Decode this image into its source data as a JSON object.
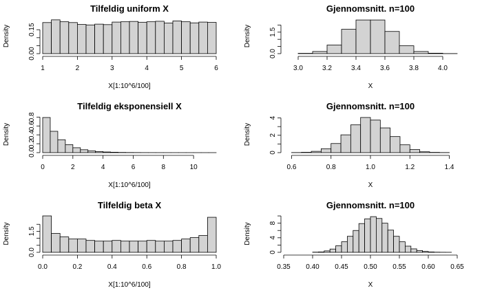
{
  "chart_data": [
    {
      "type": "bar",
      "title": "Tilfeldig uniform X",
      "xlabel": "X[1:10^6/100]",
      "ylabel": "Density",
      "bin_edges": [
        1.0,
        1.25,
        1.5,
        1.75,
        2.0,
        2.25,
        2.5,
        2.75,
        3.0,
        3.25,
        3.5,
        3.75,
        4.0,
        4.25,
        4.5,
        4.75,
        5.0,
        5.25,
        5.5,
        5.75,
        6.0
      ],
      "values": [
        0.195,
        0.212,
        0.2,
        0.195,
        0.183,
        0.18,
        0.185,
        0.182,
        0.198,
        0.2,
        0.202,
        0.197,
        0.2,
        0.203,
        0.192,
        0.205,
        0.2,
        0.193,
        0.198,
        0.196
      ],
      "xticks": [
        1,
        2,
        3,
        4,
        5,
        6
      ],
      "yticks": [
        0.0,
        0.05,
        0.1,
        0.15
      ],
      "yticklabels": [
        "0.00",
        "",
        "",
        "0.15"
      ],
      "xlim": [
        1.0,
        6.0
      ],
      "ylim": [
        0.0,
        0.22
      ]
    },
    {
      "type": "bar",
      "title": "Gjennomsnitt. n=100",
      "xlabel": "X",
      "ylabel": "Density",
      "bin_edges": [
        3.0,
        3.1,
        3.2,
        3.3,
        3.4,
        3.5,
        3.6,
        3.7,
        3.8,
        3.9,
        4.0,
        4.1
      ],
      "values": [
        0.02,
        0.15,
        0.6,
        1.7,
        2.35,
        2.35,
        1.55,
        0.55,
        0.15,
        0.03,
        0.005
      ],
      "xticks": [
        3.0,
        3.2,
        3.4,
        3.6,
        3.8,
        4.0
      ],
      "xticklabels": [
        "3.0",
        "3.2",
        "3.4",
        "3.6",
        "3.8",
        "4.0"
      ],
      "yticks": [
        0.0,
        0.5,
        1.0,
        1.5,
        2.0
      ],
      "yticklabels": [
        "0.0",
        "",
        "",
        "1.5",
        ""
      ],
      "xlim": [
        2.9,
        4.1
      ],
      "ylim": [
        0.0,
        2.45
      ]
    },
    {
      "type": "bar",
      "title": "Tilfeldig eksponensiell X",
      "xlabel": "X[1:10^6/100]",
      "ylabel": "Density",
      "bin_edges": [
        0.0,
        0.5,
        1.0,
        1.5,
        2.0,
        2.5,
        3.0,
        3.5,
        4.0,
        4.5,
        5.0,
        5.5,
        6.0,
        6.5,
        7.0,
        7.5,
        8.0,
        8.5,
        9.0,
        9.5,
        10.0,
        10.5,
        11.0,
        11.5
      ],
      "values": [
        0.79,
        0.48,
        0.29,
        0.18,
        0.11,
        0.065,
        0.04,
        0.025,
        0.015,
        0.009,
        0.005,
        0.003,
        0.002,
        0.001,
        0.0007,
        0.0004,
        0.0003,
        0.0002,
        0.0001,
        0.0001,
        5e-05,
        3e-05,
        2e-05
      ],
      "xticks": [
        0,
        2,
        4,
        6,
        8,
        10
      ],
      "yticks": [
        0.0,
        0.2,
        0.4,
        0.6,
        0.8
      ],
      "yticklabels": [
        "0.0",
        "0.2",
        "0.4",
        "0.6",
        "0.8"
      ],
      "xlim": [
        0.0,
        11.5
      ],
      "ylim": [
        0.0,
        0.82
      ]
    },
    {
      "type": "bar",
      "title": "Gjennomsnitt. n=100",
      "xlabel": "X",
      "ylabel": "Density",
      "bin_edges": [
        0.6,
        0.65,
        0.7,
        0.75,
        0.8,
        0.85,
        0.9,
        0.95,
        1.0,
        1.05,
        1.1,
        1.15,
        1.2,
        1.25,
        1.3,
        1.35,
        1.4
      ],
      "values": [
        0.01,
        0.04,
        0.15,
        0.45,
        1.05,
        2.05,
        3.2,
        4.05,
        3.75,
        2.85,
        1.85,
        0.9,
        0.35,
        0.1,
        0.03,
        0.01
      ],
      "xticks": [
        0.6,
        0.8,
        1.0,
        1.2,
        1.4
      ],
      "xticklabels": [
        "0.6",
        "0.8",
        "1.0",
        "1.2",
        "1.4"
      ],
      "yticks": [
        0,
        1,
        2,
        3,
        4
      ],
      "yticklabels": [
        "0",
        "2",
        "4"
      ],
      "yticklabel_values": [
        0,
        2,
        4
      ],
      "xlim": [
        0.56,
        1.44
      ],
      "ylim": [
        0.0,
        4.2
      ]
    },
    {
      "type": "bar",
      "title": "Tilfeldig beta X",
      "xlabel": "X[1:10^6/100]",
      "ylabel": "Density",
      "bin_edges": [
        0.0,
        0.05,
        0.1,
        0.15,
        0.2,
        0.25,
        0.3,
        0.35,
        0.4,
        0.45,
        0.5,
        0.55,
        0.6,
        0.65,
        0.7,
        0.75,
        0.8,
        0.85,
        0.9,
        0.95,
        1.0
      ],
      "values": [
        2.6,
        1.35,
        1.1,
        0.95,
        0.95,
        0.85,
        0.8,
        0.8,
        0.85,
        0.8,
        0.8,
        0.8,
        0.85,
        0.8,
        0.8,
        0.85,
        0.95,
        1.05,
        1.2,
        2.5
      ],
      "xticks": [
        0.0,
        0.2,
        0.4,
        0.6,
        0.8,
        1.0
      ],
      "xticklabels": [
        "0.0",
        "0.2",
        "0.4",
        "0.6",
        "0.8",
        "1.0"
      ],
      "yticks": [
        0.0,
        0.5,
        1.0,
        1.5,
        2.0
      ],
      "yticklabels": [
        "0.0",
        "",
        "",
        "1.5",
        ""
      ],
      "xlim": [
        0.0,
        1.0
      ],
      "ylim": [
        0.0,
        2.65
      ]
    },
    {
      "type": "bar",
      "title": "Gjennomsnitt. n=100",
      "xlabel": "X",
      "ylabel": "Density",
      "bin_edges": [
        0.35,
        0.375,
        0.4,
        0.41,
        0.42,
        0.43,
        0.44,
        0.45,
        0.46,
        0.47,
        0.48,
        0.49,
        0.5,
        0.51,
        0.52,
        0.53,
        0.54,
        0.55,
        0.56,
        0.57,
        0.58,
        0.59,
        0.6,
        0.61,
        0.62,
        0.63,
        0.64
      ],
      "values": [
        0.0,
        0.0,
        0.05,
        0.1,
        0.4,
        0.9,
        1.8,
        2.9,
        4.4,
        6.0,
        7.9,
        9.2,
        9.8,
        9.3,
        8.0,
        6.1,
        4.4,
        2.9,
        1.7,
        0.95,
        0.5,
        0.25,
        0.1,
        0.04,
        0.02,
        0.01
      ],
      "xticks": [
        0.35,
        0.4,
        0.45,
        0.5,
        0.55,
        0.6,
        0.65
      ],
      "xticklabels": [
        "0.35",
        "0.40",
        "0.45",
        "0.50",
        "0.55",
        "0.60",
        "0.65"
      ],
      "yticks": [
        0,
        2,
        4,
        6,
        8,
        10
      ],
      "yticklabels": [
        "0",
        "4",
        "8"
      ],
      "yticklabel_values": [
        0,
        4,
        8
      ],
      "xlim": [
        0.35,
        0.65
      ],
      "ylim": [
        0.0,
        10.2
      ]
    }
  ]
}
